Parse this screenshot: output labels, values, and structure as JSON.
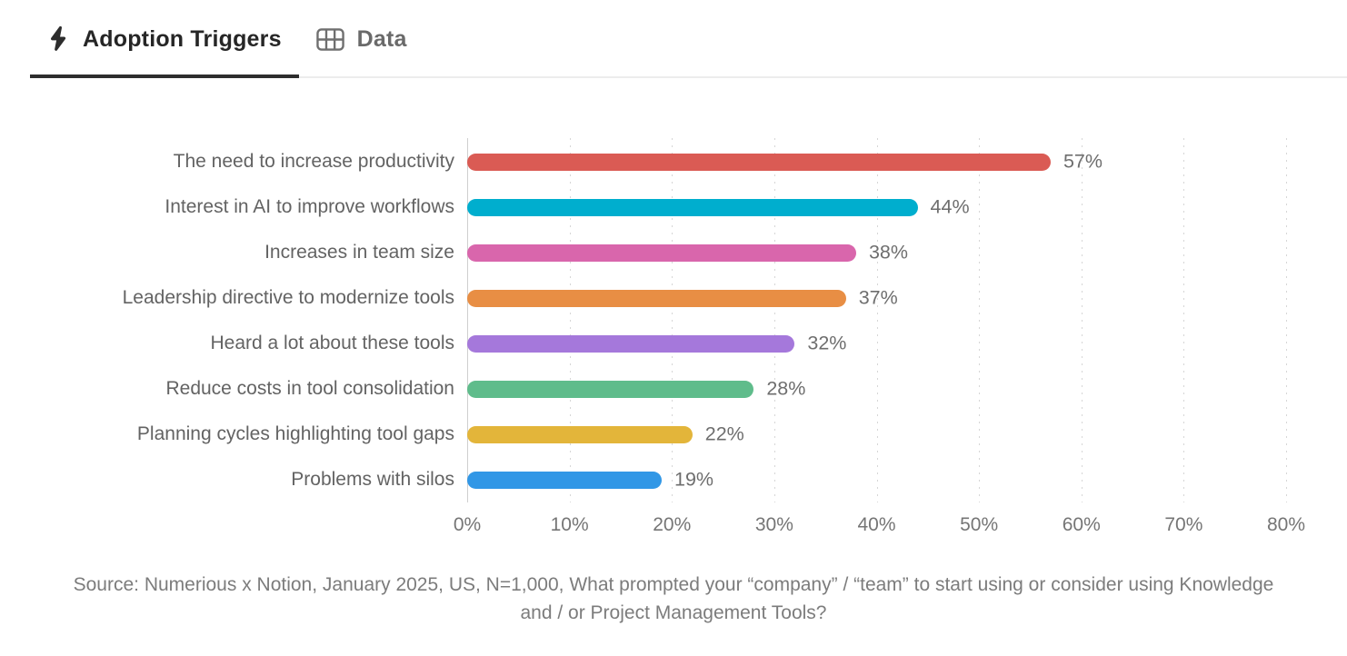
{
  "tabs": [
    {
      "label": "Adoption Triggers",
      "icon": "lightning-icon",
      "active": true
    },
    {
      "label": "Data",
      "icon": "table-icon",
      "active": false
    }
  ],
  "chart_data": {
    "type": "bar",
    "orientation": "horizontal",
    "categories": [
      "The need to increase productivity",
      "Interest in AI to improve workflows",
      "Increases in team size",
      "Leadership directive to modernize tools",
      "Heard a lot about these tools",
      "Reduce costs in tool consolidation",
      "Planning cycles highlighting tool gaps",
      "Problems with silos"
    ],
    "values": [
      57,
      44,
      38,
      37,
      32,
      28,
      22,
      19
    ],
    "value_labels": [
      "57%",
      "44%",
      "38%",
      "37%",
      "32%",
      "28%",
      "22%",
      "19%"
    ],
    "bar_colors": [
      "#DA5B54",
      "#00AECE",
      "#D966AC",
      "#E88E44",
      "#A578DB",
      "#5FBC8B",
      "#E3B53A",
      "#3197E6"
    ],
    "x_ticks": [
      "0%",
      "10%",
      "20%",
      "30%",
      "40%",
      "50%",
      "60%",
      "70%",
      "80%"
    ],
    "xlim": [
      0,
      80
    ],
    "grid": "dotted-vertical",
    "legend": "none",
    "title": ""
  },
  "footer": {
    "source": "Source: Numerious x Notion, January 2025, US, N=1,000, What prompted your “company” / “team” to start using or consider using Knowledge and / or Project Management Tools?"
  },
  "colors": {
    "active_tab_text": "#262626",
    "inactive_tab_text": "#6a6a6a",
    "active_tab_underline": "#2d2d2d",
    "category_label_text": "#636363",
    "value_label_text": "#6e6e6e",
    "tick_label_text": "#757575",
    "source_text": "#7c7c7c",
    "gridline": "#d6d6d6"
  }
}
